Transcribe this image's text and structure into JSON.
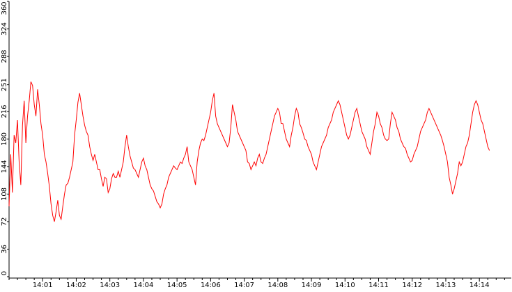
{
  "chart_data": {
    "type": "line",
    "title": "",
    "xlabel": "",
    "ylabel": "",
    "ylim": [
      0,
      360
    ],
    "y_ticks": [
      "0",
      "36",
      "72",
      "108",
      "144",
      "180",
      "216",
      "251",
      "288",
      "324",
      "360"
    ],
    "x_ticks": [
      "14:01",
      "14:02",
      "14:03",
      "14:04",
      "14:05",
      "14:06",
      "14:07",
      "14:08",
      "14:09",
      "14:10",
      "14:11",
      "14:12",
      "14:13",
      "14:14"
    ],
    "x_tick_seconds": [
      60,
      120,
      180,
      240,
      300,
      360,
      420,
      480,
      540,
      600,
      660,
      720,
      780,
      840
    ],
    "x_range_seconds": [
      0,
      897
    ],
    "grid": false,
    "legend": "none",
    "series": [
      {
        "color": "#ff0000",
        "x_step_seconds": 3,
        "values": [
          92,
          160,
          110,
          185,
          175,
          205,
          150,
          120,
          198,
          230,
          175,
          210,
          230,
          255,
          250,
          225,
          210,
          245,
          225,
          200,
          185,
          160,
          150,
          135,
          118,
          95,
          80,
          72,
          85,
          100,
          80,
          75,
          92,
          108,
          120,
          122,
          130,
          140,
          150,
          185,
          205,
          228,
          240,
          225,
          210,
          198,
          190,
          185,
          170,
          160,
          152,
          160,
          150,
          140,
          140,
          128,
          118,
          130,
          128,
          110,
          115,
          128,
          135,
          130,
          130,
          138,
          130,
          140,
          150,
          170,
          185,
          170,
          158,
          150,
          142,
          140,
          135,
          130,
          140,
          150,
          155,
          145,
          140,
          130,
          120,
          115,
          112,
          105,
          98,
          95,
          90,
          95,
          108,
          115,
          120,
          130,
          135,
          140,
          145,
          142,
          140,
          145,
          150,
          148,
          155,
          160,
          170,
          150,
          145,
          140,
          130,
          120,
          150,
          165,
          175,
          180,
          178,
          185,
          195,
          205,
          215,
          230,
          240,
          210,
          200,
          195,
          190,
          185,
          180,
          175,
          170,
          175,
          195,
          225,
          215,
          205,
          190,
          185,
          180,
          175,
          170,
          165,
          150,
          148,
          140,
          145,
          150,
          145,
          155,
          160,
          150,
          148,
          155,
          160,
          170,
          180,
          190,
          200,
          210,
          215,
          220,
          215,
          200,
          200,
          190,
          180,
          175,
          170,
          185,
          195,
          210,
          220,
          215,
          200,
          195,
          188,
          180,
          178,
          170,
          165,
          160,
          150,
          145,
          140,
          150,
          160,
          170,
          175,
          180,
          185,
          195,
          200,
          205,
          215,
          220,
          225,
          230,
          225,
          215,
          205,
          195,
          185,
          180,
          185,
          195,
          205,
          215,
          220,
          210,
          200,
          190,
          185,
          180,
          170,
          165,
          160,
          175,
          190,
          200,
          215,
          210,
          200,
          195,
          185,
          180,
          178,
          180,
          200,
          215,
          210,
          205,
          195,
          190,
          180,
          175,
          170,
          168,
          160,
          155,
          150,
          152,
          160,
          165,
          170,
          180,
          190,
          195,
          200,
          205,
          215,
          220,
          215,
          210,
          205,
          200,
          195,
          190,
          185,
          178,
          170,
          160,
          150,
          130,
          120,
          108,
          115,
          125,
          135,
          150,
          145,
          150,
          160,
          170,
          175,
          185,
          200,
          215,
          225,
          230,
          225,
          215,
          205,
          200,
          190,
          180,
          170,
          165
        ]
      }
    ]
  }
}
